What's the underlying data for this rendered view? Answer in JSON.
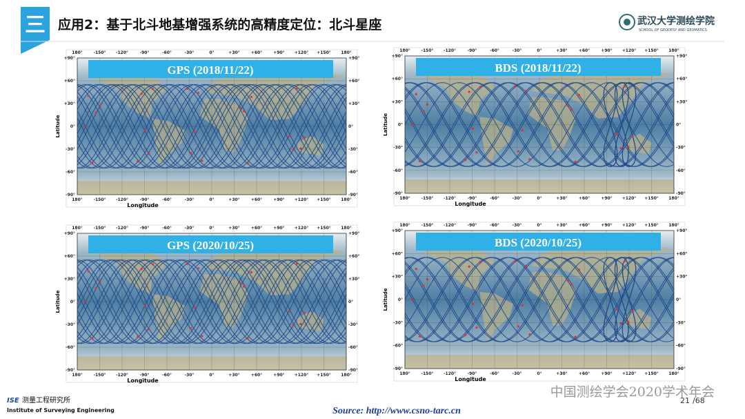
{
  "header": {
    "section": "三",
    "title": "应用2：基于北斗地基增强系统的高精度定位：北斗星座",
    "logo_cn": "武汉大学测绘学院",
    "logo_en": "SCHOOL OF GEODESY AND GEOMATICS"
  },
  "panels": [
    {
      "title": "GPS (2018/11/22)",
      "system": "GPS"
    },
    {
      "title": "BDS (2018/11/22)",
      "system": "BDS"
    },
    {
      "title": "GPS (2020/10/25)",
      "system": "GPS"
    },
    {
      "title": "BDS (2020/10/25)",
      "system": "BDS"
    }
  ],
  "axes": {
    "x_label": "Longitude",
    "y_label": "Latitude",
    "lon_ticks": [
      "180°",
      "-150°",
      "-120°",
      "-90°",
      "-60°",
      "-30°",
      "0°",
      "+30°",
      "+60°",
      "+90°",
      "+120°",
      "+150°",
      "180°"
    ],
    "lat_ticks": [
      "+90°",
      "+60°",
      "+30°",
      "0°",
      "-30°",
      "-60°",
      "-90°"
    ]
  },
  "footer": {
    "org_abbr": "ISE",
    "org_cn": "测量工程研究所",
    "org_en": "Institute of Surveying Engineering",
    "source": "Source: http://www.csno-tarc.cn",
    "watermark": "中国测绘学会2020学术年会",
    "page": "21",
    "total": "/68"
  }
}
